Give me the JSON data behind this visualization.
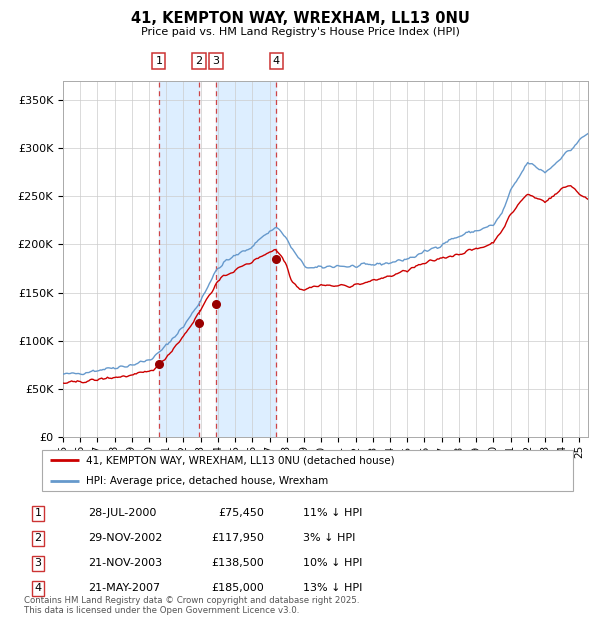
{
  "title": "41, KEMPTON WAY, WREXHAM, LL13 0NU",
  "subtitle": "Price paid vs. HM Land Registry's House Price Index (HPI)",
  "legend_label_red": "41, KEMPTON WAY, WREXHAM, LL13 0NU (detached house)",
  "legend_label_blue": "HPI: Average price, detached house, Wrexham",
  "footer": "Contains HM Land Registry data © Crown copyright and database right 2025.\nThis data is licensed under the Open Government Licence v3.0.",
  "sales": [
    {
      "label": "1",
      "x_year": 2000.57,
      "price": 75450
    },
    {
      "label": "2",
      "x_year": 2002.91,
      "price": 117950
    },
    {
      "label": "3",
      "x_year": 2003.89,
      "price": 138500
    },
    {
      "label": "4",
      "x_year": 2007.39,
      "price": 185000
    }
  ],
  "sale_dates_display": [
    "28-JUL-2000",
    "29-NOV-2002",
    "21-NOV-2003",
    "21-MAY-2007"
  ],
  "sale_prices_display": [
    "£75,450",
    "£117,950",
    "£138,500",
    "£185,000"
  ],
  "sale_hpi_display": [
    "11% ↓ HPI",
    "3% ↓ HPI",
    "10% ↓ HPI",
    "13% ↓ HPI"
  ],
  "xlim": [
    1995.0,
    2025.5
  ],
  "ylim": [
    0,
    370000
  ],
  "yticks": [
    0,
    50000,
    100000,
    150000,
    200000,
    250000,
    300000,
    350000
  ],
  "ytick_labels": [
    "£0",
    "£50K",
    "£100K",
    "£150K",
    "£200K",
    "£250K",
    "£300K",
    "£350K"
  ],
  "red_color": "#cc0000",
  "blue_color": "#6699cc",
  "highlight_color": "#ddeeff",
  "dashed_color": "#cc3333",
  "grid_color": "#cccccc",
  "box_color": "#cc3333",
  "hpi_key_years": [
    1995,
    1995.5,
    1996,
    1996.5,
    1997,
    1997.5,
    1998,
    1998.5,
    1999,
    1999.5,
    2000,
    2000.5,
    2001,
    2001.5,
    2002,
    2002.5,
    2003,
    2003.5,
    2004,
    2004.5,
    2005,
    2005.5,
    2006,
    2006.5,
    2007,
    2007.3,
    2007.6,
    2008,
    2008.5,
    2009,
    2009.5,
    2010,
    2010.5,
    2011,
    2011.5,
    2012,
    2012.5,
    2013,
    2013.5,
    2014,
    2014.5,
    2015,
    2015.5,
    2016,
    2016.5,
    2017,
    2017.5,
    2018,
    2018.5,
    2019,
    2019.5,
    2020,
    2020.5,
    2021,
    2021.5,
    2022,
    2022.5,
    2023,
    2023.5,
    2024,
    2024.5,
    2025,
    2025.5
  ],
  "hpi_key_prices": [
    65000,
    65500,
    66500,
    68000,
    69500,
    71000,
    72500,
    73500,
    75000,
    77500,
    80000,
    86000,
    95000,
    105000,
    115000,
    128000,
    142000,
    160000,
    175000,
    183000,
    188000,
    193000,
    198000,
    207000,
    213000,
    218000,
    215000,
    205000,
    190000,
    178000,
    175000,
    176000,
    177000,
    178000,
    177000,
    177000,
    178000,
    179000,
    180000,
    181000,
    183000,
    185000,
    188000,
    192000,
    196000,
    200000,
    205000,
    208000,
    212000,
    214000,
    217000,
    220000,
    232000,
    255000,
    270000,
    285000,
    280000,
    275000,
    282000,
    292000,
    298000,
    308000,
    315000
  ],
  "red_key_years": [
    1995,
    1995.5,
    1996,
    1996.5,
    1997,
    1997.5,
    1998,
    1998.5,
    1999,
    1999.5,
    2000,
    2000.5,
    2001,
    2001.5,
    2002,
    2002.5,
    2003,
    2003.5,
    2004,
    2004.5,
    2005,
    2005.5,
    2006,
    2006.5,
    2007,
    2007.3,
    2007.7,
    2008,
    2008.3,
    2008.7,
    2009,
    2009.5,
    2010,
    2010.5,
    2011,
    2011.5,
    2012,
    2012.5,
    2013,
    2013.5,
    2014,
    2014.5,
    2015,
    2015.5,
    2016,
    2016.5,
    2017,
    2017.5,
    2018,
    2018.5,
    2019,
    2019.5,
    2020,
    2020.5,
    2021,
    2021.5,
    2022,
    2022.5,
    2023,
    2023.5,
    2024,
    2024.5,
    2025,
    2025.5
  ],
  "red_key_prices": [
    56000,
    56500,
    57500,
    58500,
    59500,
    61000,
    62000,
    63000,
    64000,
    66000,
    68000,
    74000,
    83000,
    94000,
    105000,
    118000,
    132000,
    148000,
    161000,
    169000,
    173000,
    178000,
    182000,
    188000,
    192000,
    195000,
    188000,
    178000,
    162000,
    155000,
    153000,
    156000,
    158000,
    157000,
    157000,
    157000,
    158000,
    160000,
    162000,
    165000,
    167000,
    170000,
    173000,
    177000,
    180000,
    183000,
    186000,
    188000,
    190000,
    193000,
    195000,
    198000,
    202000,
    215000,
    230000,
    243000,
    252000,
    248000,
    245000,
    250000,
    258000,
    262000,
    252000,
    248000
  ]
}
